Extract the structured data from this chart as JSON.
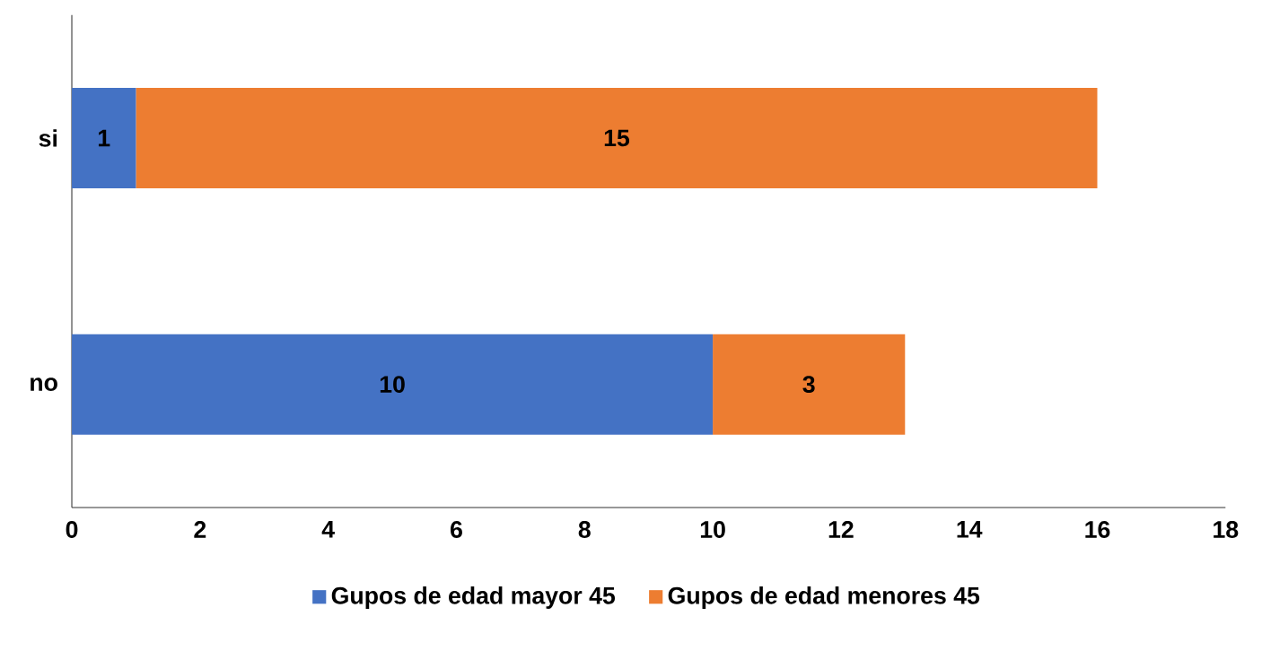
{
  "chart_data": {
    "type": "bar",
    "orientation": "horizontal",
    "stacked": true,
    "categories": [
      "si",
      "no"
    ],
    "series": [
      {
        "name": "Gupos de edad mayor 45",
        "color": "#4472c4",
        "values": [
          1,
          10
        ]
      },
      {
        "name": "Gupos de edad menores 45",
        "color": "#ed7d31",
        "values": [
          15,
          3
        ]
      }
    ],
    "xlim": [
      0,
      18
    ],
    "xticks": [
      0,
      2,
      4,
      6,
      8,
      10,
      12,
      14,
      16,
      18
    ],
    "data_labels": true,
    "legend": "bottom",
    "grid": false
  }
}
